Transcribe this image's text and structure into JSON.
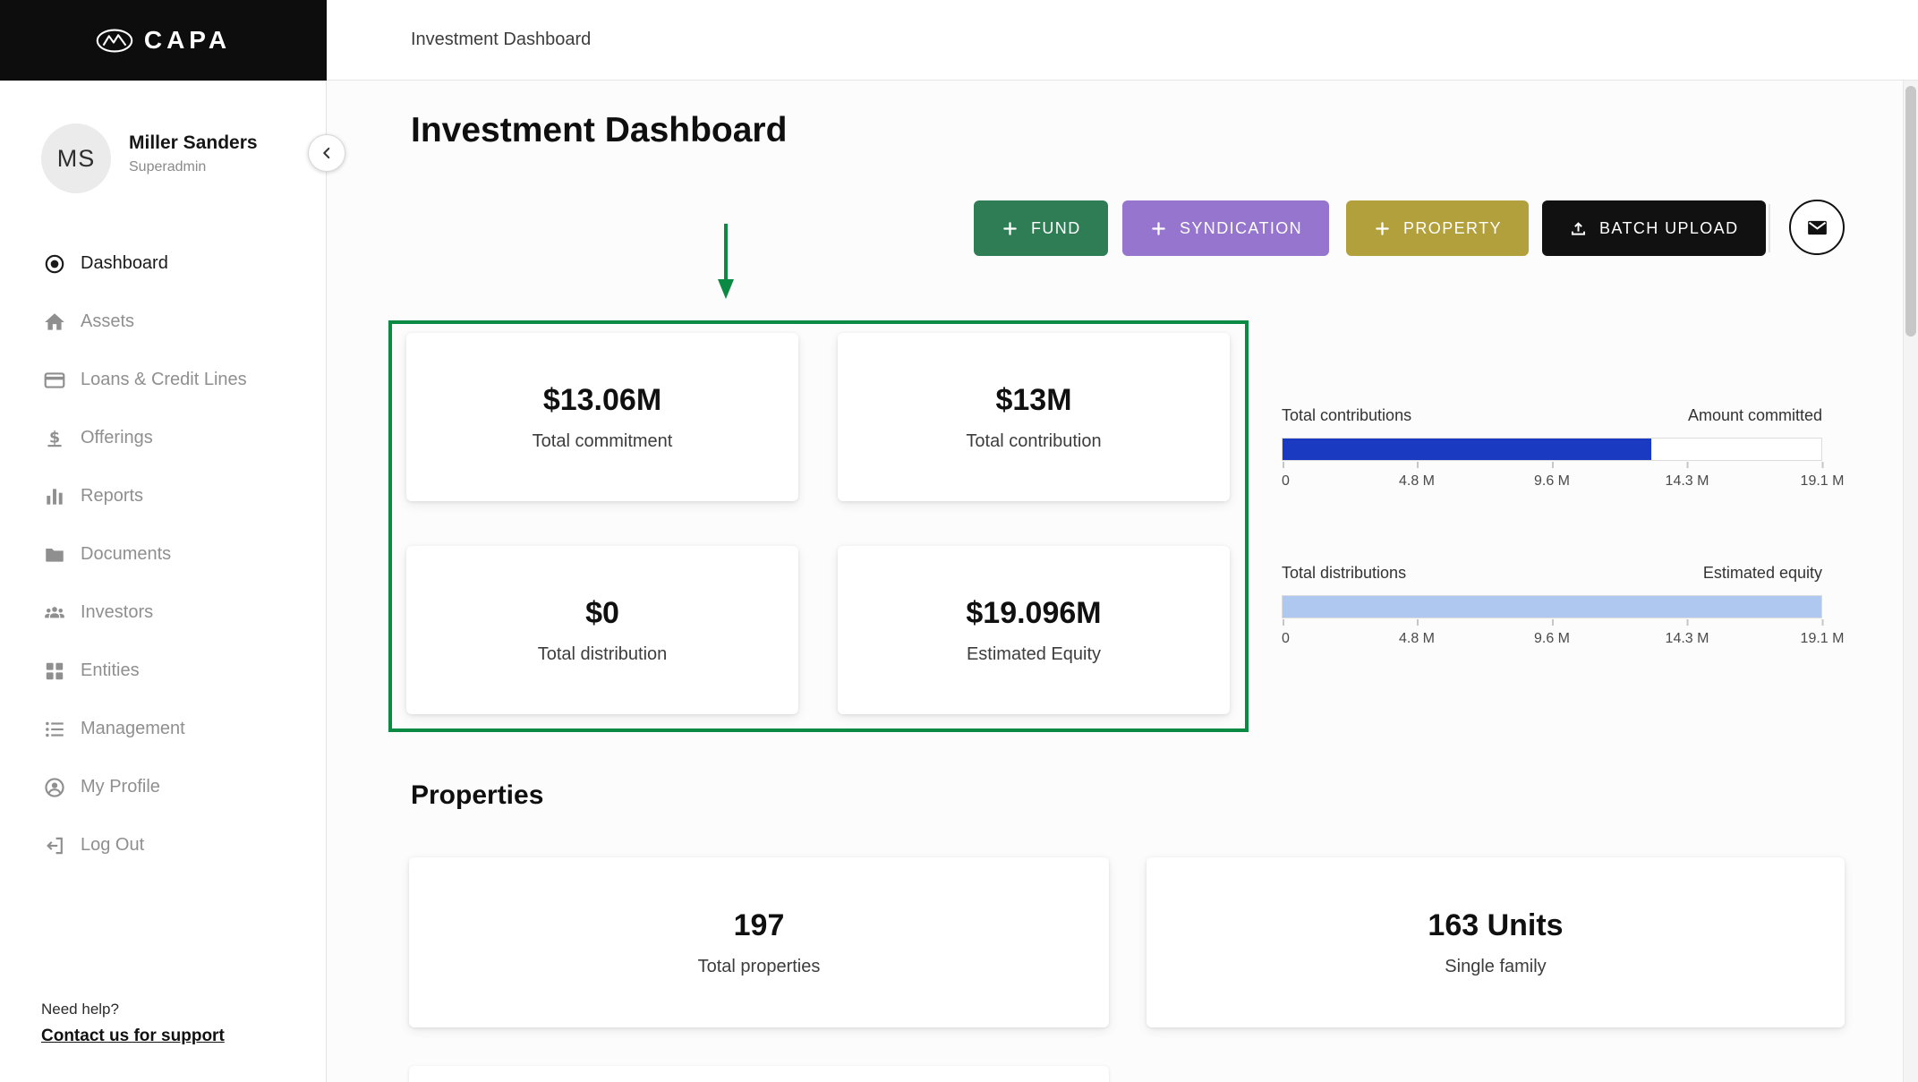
{
  "brand": {
    "logo_text": "CAPA"
  },
  "topbar": {
    "breadcrumb": "Investment Dashboard"
  },
  "sidebar": {
    "user": {
      "initials": "MS",
      "name": "Miller Sanders",
      "role": "Superadmin"
    },
    "items": [
      {
        "label": "Dashboard",
        "icon": "dashboard-icon",
        "active": true
      },
      {
        "label": "Assets",
        "icon": "home-icon",
        "active": false
      },
      {
        "label": "Loans & Credit Lines",
        "icon": "credit-card-icon",
        "active": false
      },
      {
        "label": "Offerings",
        "icon": "dollar-icon",
        "active": false
      },
      {
        "label": "Reports",
        "icon": "bar-chart-icon",
        "active": false
      },
      {
        "label": "Documents",
        "icon": "folder-icon",
        "active": false
      },
      {
        "label": "Investors",
        "icon": "people-icon",
        "active": false
      },
      {
        "label": "Entities",
        "icon": "grid-icon",
        "active": false
      },
      {
        "label": "Management",
        "icon": "checklist-icon",
        "active": false
      },
      {
        "label": "My Profile",
        "icon": "person-icon",
        "active": false
      },
      {
        "label": "Log Out",
        "icon": "logout-icon",
        "active": false
      }
    ],
    "help": {
      "text": "Need help?",
      "link_label": "Contact us for support"
    }
  },
  "main": {
    "title": "Investment Dashboard",
    "actions": {
      "fund": {
        "label": "FUND"
      },
      "syndication": {
        "label": "SYNDICATION"
      },
      "property": {
        "label": "PROPERTY"
      },
      "batch_upload": {
        "label": "BATCH UPLOAD"
      }
    },
    "stats": [
      {
        "value": "$13.06M",
        "label": "Total commitment"
      },
      {
        "value": "$13M",
        "label": "Total contribution"
      },
      {
        "value": "$0",
        "label": "Total distribution"
      },
      {
        "value": "$19.096M",
        "label": "Estimated Equity"
      }
    ],
    "properties": {
      "heading": "Properties",
      "cards": [
        {
          "value": "197",
          "label": "Total properties"
        },
        {
          "value": "163 Units",
          "label": "Single family"
        }
      ]
    }
  },
  "chart_data": [
    {
      "type": "bar",
      "orientation": "horizontal",
      "left_label": "Total contributions",
      "right_label": "Amount committed",
      "series": [
        {
          "name": "Total contributions",
          "value": 13.06
        }
      ],
      "max": 19.1,
      "xlim": [
        0,
        19.1
      ],
      "ticks": [
        "0",
        "4.8 M",
        "9.6 M",
        "14.3 M",
        "19.1 M"
      ],
      "bar_color": "#1a3bc1"
    },
    {
      "type": "bar",
      "orientation": "horizontal",
      "left_label": "Total distributions",
      "right_label": "Estimated equity",
      "series": [
        {
          "name": "Estimated equity",
          "value": 19.096
        }
      ],
      "max": 19.1,
      "xlim": [
        0,
        19.1
      ],
      "ticks": [
        "0",
        "4.8 M",
        "9.6 M",
        "14.3 M",
        "19.1 M"
      ],
      "bar_color": "#aec8f0"
    }
  ],
  "colors": {
    "fund_green": "#2e7d54",
    "syndication_purple": "#9575cd",
    "property_olive": "#b2a03c",
    "batch_black": "#111111",
    "annotation_green": "#0b8a43",
    "contributions_bar": "#1a3bc1",
    "equity_bar": "#aec8f0"
  }
}
